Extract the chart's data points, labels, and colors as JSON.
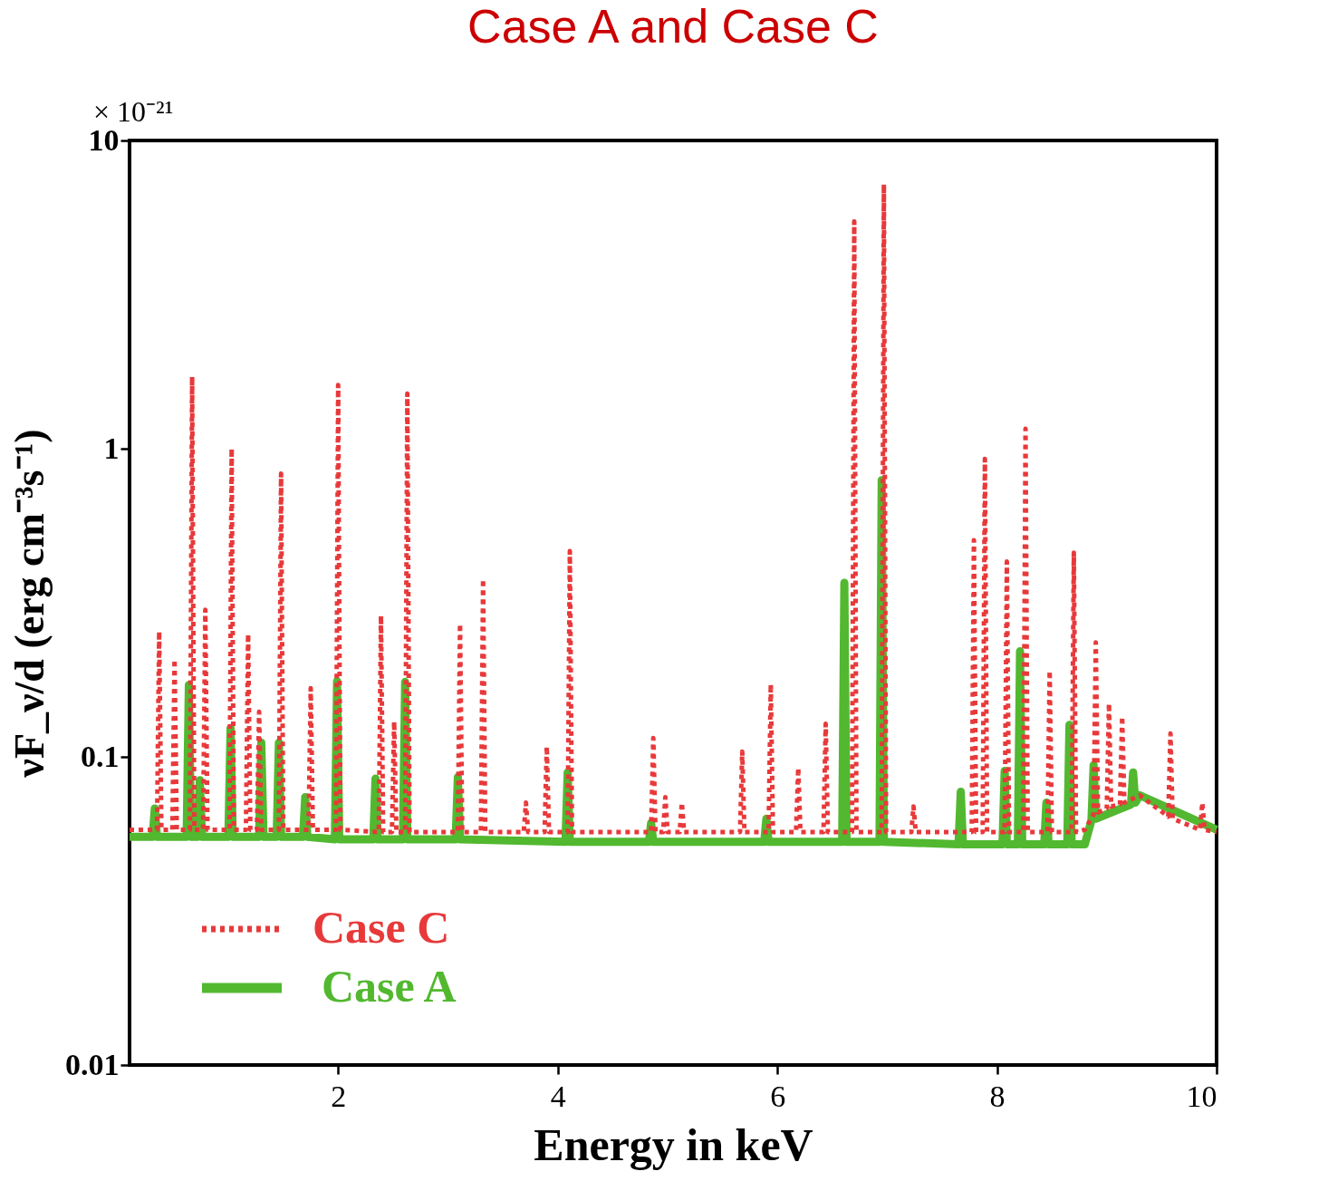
{
  "chart_data": {
    "type": "line",
    "title": "Case A and Case C",
    "xlabel": "Energy in keV",
    "ylabel": "νF_ν/d (erg cm⁻³s⁻¹)",
    "annotations": [
      "× 10⁻²¹"
    ],
    "xlim": [
      0.1,
      10
    ],
    "xticks": [
      2,
      4,
      6,
      8,
      10
    ],
    "ylim": [
      0.01,
      10
    ],
    "yticks": [
      0.01,
      0.1,
      1,
      10
    ],
    "log": true,
    "grid": false,
    "legend": "bottom left",
    "series": [
      {
        "name": "Case C",
        "color": "#e8393a",
        "line_style": "dotted",
        "x": [
          0.1,
          0.35,
          0.37,
          0.39,
          0.49,
          0.51,
          0.53,
          0.65,
          0.67,
          0.69,
          0.77,
          0.79,
          0.81,
          1.01,
          1.03,
          1.05,
          1.16,
          1.18,
          1.2,
          1.26,
          1.28,
          1.3,
          1.46,
          1.48,
          1.5,
          1.73,
          1.75,
          1.77,
          1.98,
          2.0,
          2.02,
          2.37,
          2.39,
          2.41,
          2.49,
          2.51,
          2.53,
          2.61,
          2.63,
          2.65,
          3.09,
          3.11,
          3.13,
          3.3,
          3.32,
          3.34,
          3.69,
          3.71,
          3.73,
          3.88,
          3.9,
          3.92,
          4.09,
          4.11,
          4.13,
          4.85,
          4.87,
          4.89,
          4.96,
          4.98,
          5.0,
          5.11,
          5.13,
          5.15,
          5.66,
          5.68,
          5.7,
          5.92,
          5.94,
          5.96,
          6.17,
          6.19,
          6.21,
          6.42,
          6.44,
          6.46,
          6.68,
          6.7,
          6.72,
          6.95,
          6.97,
          6.99,
          7.22,
          7.24,
          7.26,
          7.77,
          7.79,
          7.81,
          7.87,
          7.89,
          7.91,
          8.07,
          8.09,
          8.11,
          8.24,
          8.26,
          8.28,
          8.46,
          8.48,
          8.5,
          8.68,
          8.7,
          8.72,
          8.8,
          8.88,
          8.9,
          8.92,
          9.0,
          9.02,
          9.04,
          9.12,
          9.14,
          9.16,
          9.3,
          9.56,
          9.58,
          9.6,
          9.85,
          9.87,
          9.89,
          10
        ],
        "values": [
          0.058,
          0.058,
          0.255,
          0.058,
          0.058,
          0.207,
          0.058,
          0.058,
          1.71,
          0.058,
          0.058,
          0.3,
          0.058,
          0.058,
          1.0,
          0.058,
          0.058,
          0.25,
          0.058,
          0.058,
          0.14,
          0.058,
          0.058,
          0.83,
          0.058,
          0.058,
          0.167,
          0.058,
          0.058,
          1.61,
          0.058,
          0.057,
          0.287,
          0.057,
          0.057,
          0.13,
          0.057,
          0.057,
          1.51,
          0.057,
          0.057,
          0.27,
          0.057,
          0.057,
          0.377,
          0.057,
          0.057,
          0.071,
          0.057,
          0.057,
          0.108,
          0.057,
          0.057,
          0.465,
          0.057,
          0.057,
          0.115,
          0.057,
          0.057,
          0.074,
          0.057,
          0.057,
          0.071,
          0.057,
          0.057,
          0.104,
          0.057,
          0.057,
          0.172,
          0.057,
          0.057,
          0.092,
          0.057,
          0.057,
          0.128,
          0.057,
          0.057,
          5.46,
          0.057,
          0.057,
          7.2,
          0.057,
          0.057,
          0.069,
          0.057,
          0.057,
          0.505,
          0.057,
          0.057,
          0.926,
          0.057,
          0.057,
          0.43,
          0.057,
          0.057,
          1.16,
          0.057,
          0.057,
          0.19,
          0.057,
          0.057,
          0.46,
          0.057,
          0.058,
          0.065,
          0.235,
          0.066,
          0.068,
          0.149,
          0.069,
          0.07,
          0.135,
          0.071,
          0.075,
          0.064,
          0.119,
          0.063,
          0.058,
          0.071,
          0.058,
          0.057
        ]
      },
      {
        "name": "Case A",
        "color": "#52b830",
        "line_style": "solid",
        "x": [
          0.1,
          0.31,
          0.33,
          0.35,
          0.62,
          0.64,
          0.66,
          0.72,
          0.74,
          0.76,
          1.0,
          1.02,
          1.04,
          1.28,
          1.3,
          1.32,
          1.44,
          1.46,
          1.48,
          1.68,
          1.7,
          1.72,
          1.97,
          1.99,
          2.01,
          2.32,
          2.34,
          2.36,
          2.59,
          2.61,
          2.63,
          3.07,
          3.09,
          3.11,
          4.07,
          4.09,
          4.11,
          4.83,
          4.85,
          4.87,
          5.88,
          5.9,
          5.92,
          6.59,
          6.61,
          6.63,
          6.93,
          6.95,
          6.97,
          7.65,
          7.67,
          7.69,
          8.05,
          8.07,
          8.09,
          8.19,
          8.21,
          8.23,
          8.43,
          8.45,
          8.47,
          8.64,
          8.66,
          8.68,
          8.8,
          8.86,
          8.88,
          8.9,
          9.22,
          9.24,
          9.26,
          9.3,
          10
        ],
        "values": [
          0.055,
          0.055,
          0.068,
          0.055,
          0.055,
          0.171,
          0.055,
          0.055,
          0.084,
          0.055,
          0.055,
          0.124,
          0.055,
          0.055,
          0.111,
          0.055,
          0.055,
          0.111,
          0.055,
          0.055,
          0.074,
          0.055,
          0.054,
          0.176,
          0.054,
          0.054,
          0.085,
          0.054,
          0.054,
          0.175,
          0.054,
          0.054,
          0.086,
          0.054,
          0.053,
          0.089,
          0.053,
          0.053,
          0.061,
          0.053,
          0.053,
          0.063,
          0.053,
          0.053,
          0.367,
          0.053,
          0.053,
          0.79,
          0.053,
          0.052,
          0.077,
          0.052,
          0.052,
          0.09,
          0.052,
          0.052,
          0.22,
          0.052,
          0.052,
          0.071,
          0.052,
          0.052,
          0.127,
          0.052,
          0.052,
          0.062,
          0.094,
          0.063,
          0.07,
          0.089,
          0.071,
          0.075,
          0.058
        ]
      }
    ]
  }
}
